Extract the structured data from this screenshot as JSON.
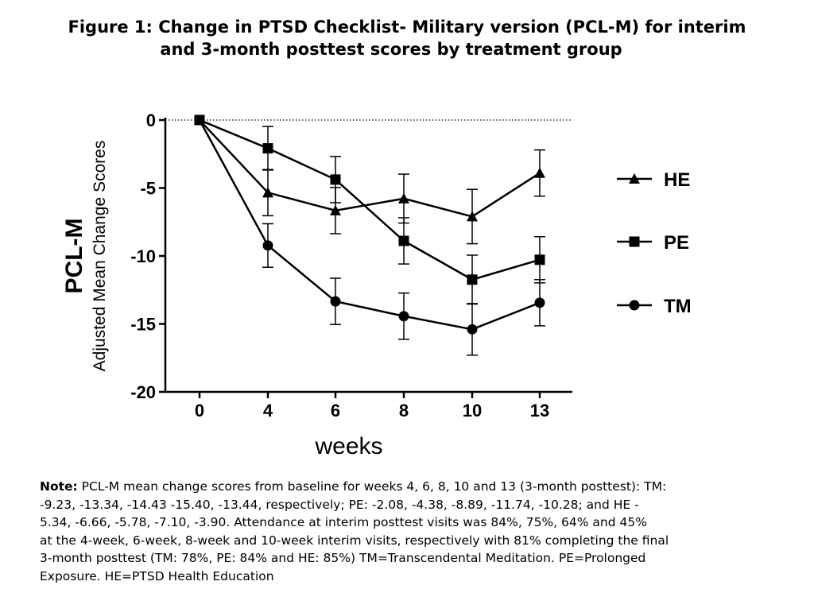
{
  "title": {
    "line1": "Figure 1: Change in PTSD Checklist- Military version (PCL-M) for interim",
    "line2": "and 3-month posttest scores by treatment group"
  },
  "chart_data": {
    "type": "line",
    "categories": [
      "0",
      "4",
      "6",
      "8",
      "10",
      "13"
    ],
    "ylabel_main": "PCL-M",
    "ylabel_sub": "Adjusted Mean Change Scores",
    "xlabel": "weeks",
    "ylim": [
      -20,
      0
    ],
    "yticks": [
      "0",
      "-5",
      "-10",
      "-15",
      "-20"
    ],
    "reference_line": 0,
    "legend_position": "right",
    "series": [
      {
        "name": "HE",
        "marker": "triangle",
        "values": [
          0,
          -5.34,
          -6.66,
          -5.78,
          -7.1,
          -3.9
        ],
        "errors": [
          0,
          1.7,
          1.7,
          1.8,
          2.0,
          1.7
        ]
      },
      {
        "name": "PE",
        "marker": "square",
        "values": [
          0,
          -2.08,
          -4.38,
          -8.89,
          -11.74,
          -10.28
        ],
        "errors": [
          0,
          1.6,
          1.7,
          1.7,
          1.8,
          1.7
        ]
      },
      {
        "name": "TM",
        "marker": "circle",
        "values": [
          0,
          -9.23,
          -13.34,
          -14.43,
          -15.4,
          -13.44
        ],
        "errors": [
          0,
          1.6,
          1.7,
          1.7,
          1.9,
          1.7
        ]
      }
    ]
  },
  "note": {
    "label": "Note:",
    "lines": [
      " PCL-M mean change scores from baseline for weeks 4, 6, 8, 10 and 13 (3-month posttest): TM:",
      "-9.23, -13.34, -14.43 -15.40, -13.44, respectively; PE: -2.08, -4.38, -8.89, -11.74, -10.28; and HE -",
      "5.34, -6.66, -5.78, -7.10, -3.90. Attendance at interim posttest visits was 84%, 75%, 64% and 45%",
      "at the 4-week, 6-week, 8-week and 10-week interim visits, respectively with 81% completing the final",
      "3-month posttest (TM: 78%, PE: 84% and HE: 85%)  TM=Transcendental Meditation. PE=Prolonged",
      "Exposure. HE=PTSD Health Education"
    ]
  }
}
